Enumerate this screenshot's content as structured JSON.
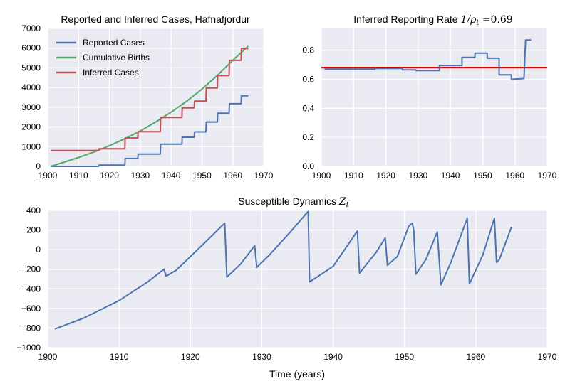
{
  "colors": {
    "panel_bg": "#EAEAF2",
    "grid": "#FFFFFF",
    "blue": "#4C72B0",
    "green": "#55A868",
    "red": "#C44E52",
    "rate_line": "#DD0000"
  },
  "chart_data": [
    {
      "id": "cases",
      "type": "line",
      "title": "Reported and Inferred Cases, Hafnafjordur",
      "xlim": [
        1900,
        1970
      ],
      "ylim": [
        0,
        7000
      ],
      "xticks": [
        1900,
        1910,
        1920,
        1930,
        1940,
        1950,
        1960,
        1970
      ],
      "yticks": [
        0,
        1000,
        2000,
        3000,
        4000,
        5000,
        6000,
        7000
      ],
      "grid": true,
      "legend": "top-left",
      "series": [
        {
          "name": "Reported Cases",
          "color": "#4C72B0",
          "x": [
            1901,
            1916.5,
            1916.6,
            1925,
            1925.1,
            1929.2,
            1929.3,
            1936.5,
            1936.6,
            1943.5,
            1943.6,
            1947.5,
            1947.6,
            1951.3,
            1951.4,
            1955,
            1955.1,
            1958.8,
            1958.9,
            1962.7,
            1962.8,
            1965
          ],
          "y": [
            0,
            0,
            60,
            60,
            400,
            400,
            620,
            620,
            1130,
            1130,
            1480,
            1480,
            1750,
            1750,
            2250,
            2250,
            2700,
            2700,
            3180,
            3180,
            3580,
            3580
          ]
        },
        {
          "name": "Cumulative Births",
          "color": "#55A868",
          "x": [
            1901,
            1905,
            1910,
            1915,
            1920,
            1925,
            1930,
            1935,
            1940,
            1945,
            1950,
            1955,
            1960,
            1965
          ],
          "y": [
            0,
            200,
            450,
            730,
            1050,
            1400,
            1800,
            2250,
            2750,
            3300,
            3920,
            4620,
            5380,
            6100
          ]
        },
        {
          "name": "Inferred Cases",
          "color": "#C44E52",
          "x": [
            1901,
            1916.5,
            1916.6,
            1925,
            1925.1,
            1929.2,
            1929.3,
            1936.5,
            1936.6,
            1943.5,
            1943.6,
            1947.5,
            1947.6,
            1951.3,
            1951.4,
            1955,
            1955.1,
            1958.8,
            1958.9,
            1962.7,
            1962.8,
            1965
          ],
          "y": [
            800,
            800,
            890,
            890,
            1440,
            1440,
            1760,
            1760,
            2480,
            2480,
            2970,
            2970,
            3310,
            3310,
            3980,
            3980,
            4610,
            4610,
            5380,
            5380,
            5980,
            5980
          ]
        }
      ]
    },
    {
      "id": "rate",
      "type": "line",
      "title": "Inferred Reporting Rate",
      "title_math_base": "1/ρ",
      "title_math_sub": "t",
      "title_math_value": " =0.69",
      "xlim": [
        1900,
        1970
      ],
      "ylim": [
        0,
        0.95
      ],
      "xticks": [
        1900,
        1910,
        1920,
        1930,
        1940,
        1950,
        1960,
        1970
      ],
      "yticks": [
        0.0,
        0.2,
        0.4,
        0.6,
        0.8
      ],
      "grid": true,
      "hline": {
        "y": 0.68,
        "color": "#DD0000"
      },
      "series": [
        {
          "color": "#4C72B0",
          "x": [
            1901,
            1916.6,
            1916.6,
            1925.1,
            1925.1,
            1929.3,
            1929.3,
            1936.6,
            1936.6,
            1943.6,
            1943.6,
            1947.6,
            1947.6,
            1951.4,
            1951.4,
            1955.1,
            1955.1,
            1958.9,
            1958.9,
            1962.8,
            1963.3,
            1965
          ],
          "y": [
            0.67,
            0.67,
            0.675,
            0.675,
            0.665,
            0.665,
            0.66,
            0.66,
            0.695,
            0.695,
            0.75,
            0.75,
            0.78,
            0.78,
            0.745,
            0.745,
            0.63,
            0.63,
            0.6,
            0.605,
            0.87,
            0.87
          ]
        }
      ]
    },
    {
      "id": "susceptible",
      "type": "line",
      "title": "Susceptible Dynamics",
      "title_math_base": "Z",
      "title_math_sub": "t",
      "xlabel": "Time (years)",
      "xlim": [
        1900,
        1970
      ],
      "ylim": [
        -1000,
        400
      ],
      "xticks": [
        1900,
        1910,
        1920,
        1930,
        1940,
        1950,
        1960,
        1970
      ],
      "yticks": [
        -1000,
        -800,
        -600,
        -400,
        -200,
        0,
        200,
        400
      ],
      "grid": true,
      "series": [
        {
          "color": "#4C72B0",
          "x": [
            1901,
            1905,
            1910,
            1914,
            1916.3,
            1916.6,
            1918,
            1922,
            1924.8,
            1925.1,
            1927,
            1929,
            1929.3,
            1931,
            1934,
            1936.5,
            1936.7,
            1940,
            1943.4,
            1943.7,
            1946,
            1947.3,
            1947.6,
            1949,
            1950.6,
            1951.1,
            1951.3,
            1951.6,
            1953,
            1954.6,
            1955.1,
            1956.5,
            1958.8,
            1959.1,
            1961,
            1962.6,
            1962.9,
            1963.3,
            1965
          ],
          "y": [
            -810,
            -700,
            -520,
            -330,
            -200,
            -270,
            -210,
            70,
            270,
            -280,
            -150,
            40,
            -180,
            -60,
            180,
            390,
            -330,
            -170,
            190,
            -240,
            -30,
            120,
            -160,
            -70,
            240,
            270,
            200,
            -250,
            -100,
            180,
            -360,
            -130,
            320,
            -350,
            -50,
            320,
            -130,
            -100,
            230
          ]
        }
      ]
    }
  ]
}
